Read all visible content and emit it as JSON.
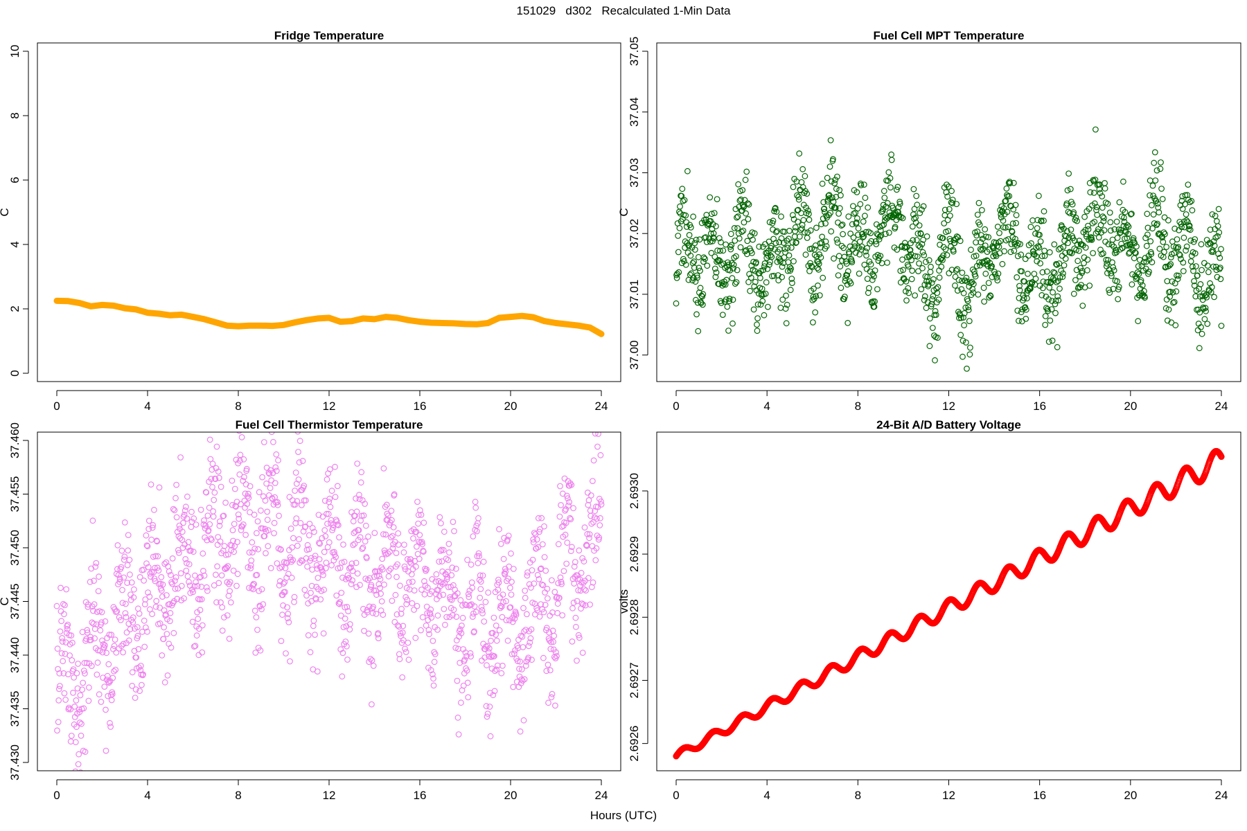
{
  "header": {
    "title": "151029   d302   Recalculated 1-Min Data",
    "xlabel": "Hours (UTC)"
  },
  "chart_data": [
    {
      "type": "line",
      "title": "Fridge Temperature",
      "xlabel": "",
      "ylabel": "C",
      "xlim": [
        0,
        24
      ],
      "ylim": [
        0,
        10
      ],
      "xticks": [
        0,
        4,
        8,
        12,
        16,
        20,
        24
      ],
      "yticks": [
        0,
        2,
        4,
        6,
        8,
        10
      ],
      "ytick_labels": [
        "0",
        "2",
        "4",
        "6",
        "8",
        "10"
      ],
      "color": "#FFA500",
      "x": [
        0,
        0.5,
        1,
        1.5,
        2,
        2.5,
        3,
        3.5,
        4,
        4.5,
        5,
        5.5,
        6,
        6.5,
        7,
        7.5,
        8,
        8.5,
        9,
        9.5,
        10,
        10.5,
        11,
        11.5,
        12,
        12.5,
        13,
        13.5,
        14,
        14.5,
        15,
        15.5,
        16,
        16.5,
        17,
        17.5,
        18,
        18.5,
        19,
        19.5,
        20,
        20.5,
        21,
        21.5,
        22,
        22.5,
        23,
        23.5,
        24
      ],
      "values": [
        2.25,
        2.24,
        2.18,
        2.08,
        2.12,
        2.1,
        2.02,
        1.98,
        1.88,
        1.85,
        1.8,
        1.82,
        1.75,
        1.68,
        1.58,
        1.48,
        1.46,
        1.48,
        1.48,
        1.47,
        1.5,
        1.58,
        1.65,
        1.7,
        1.72,
        1.6,
        1.62,
        1.7,
        1.68,
        1.75,
        1.72,
        1.65,
        1.6,
        1.57,
        1.56,
        1.55,
        1.53,
        1.52,
        1.56,
        1.72,
        1.75,
        1.78,
        1.74,
        1.62,
        1.56,
        1.52,
        1.48,
        1.42,
        1.22
      ]
    },
    {
      "type": "scatter",
      "title": "Fuel Cell MPT Temperature",
      "xlabel": "",
      "ylabel": "C",
      "xlim": [
        0,
        24
      ],
      "ylim": [
        36.997,
        37.05
      ],
      "xticks": [
        0,
        4,
        8,
        12,
        16,
        20,
        24
      ],
      "yticks": [
        37.0,
        37.01,
        37.02,
        37.03,
        37.04,
        37.05
      ],
      "ytick_labels": [
        "37.00",
        "37.01",
        "37.02",
        "37.03",
        "37.04",
        "37.05"
      ],
      "color": "#006400",
      "n_points": 1440,
      "baseline": [
        [
          0,
          37.016
        ],
        [
          1,
          37.018
        ],
        [
          2,
          37.015
        ],
        [
          3,
          37.02
        ],
        [
          4,
          37.012
        ],
        [
          5,
          37.02
        ],
        [
          6,
          37.018
        ],
        [
          7,
          37.022
        ],
        [
          8,
          37.017
        ],
        [
          9,
          37.02
        ],
        [
          10,
          37.022
        ],
        [
          11,
          37.012
        ],
        [
          12,
          37.018
        ],
        [
          13,
          37.01
        ],
        [
          14,
          37.02
        ],
        [
          15,
          37.018
        ],
        [
          16,
          37.012
        ],
        [
          17,
          37.016
        ],
        [
          18,
          37.022
        ],
        [
          19,
          37.02
        ],
        [
          20,
          37.016
        ],
        [
          21,
          37.02
        ],
        [
          22,
          37.018
        ],
        [
          23,
          37.016
        ],
        [
          24,
          37.01
        ]
      ],
      "spread": 0.009
    },
    {
      "type": "scatter",
      "title": "Fuel Cell Thermistor Temperature",
      "xlabel": "",
      "ylabel": "C",
      "xlim": [
        0,
        24
      ],
      "ylim": [
        37.43,
        37.46
      ],
      "xticks": [
        0,
        4,
        8,
        12,
        16,
        20,
        24
      ],
      "yticks": [
        37.43,
        37.435,
        37.44,
        37.445,
        37.45,
        37.455,
        37.46
      ],
      "ytick_labels": [
        "37.430",
        "37.435",
        "37.440",
        "37.445",
        "37.450",
        "37.455",
        "37.460"
      ],
      "color": "#EE82EE",
      "n_points": 1440,
      "baseline": [
        [
          0,
          37.437
        ],
        [
          1,
          37.439
        ],
        [
          2,
          37.441
        ],
        [
          3,
          37.444
        ],
        [
          4,
          37.446
        ],
        [
          5,
          37.448
        ],
        [
          6,
          37.449
        ],
        [
          7,
          37.451
        ],
        [
          8,
          37.452
        ],
        [
          9,
          37.451
        ],
        [
          10,
          37.451
        ],
        [
          11,
          37.45
        ],
        [
          12,
          37.449
        ],
        [
          13,
          37.448
        ],
        [
          14,
          37.448
        ],
        [
          15,
          37.447
        ],
        [
          16,
          37.446
        ],
        [
          17,
          37.445
        ],
        [
          18,
          37.444
        ],
        [
          19,
          37.443
        ],
        [
          20,
          37.443
        ],
        [
          21,
          37.444
        ],
        [
          22,
          37.446
        ],
        [
          23,
          37.449
        ],
        [
          24,
          37.451
        ]
      ],
      "spread": 0.0075
    },
    {
      "type": "line",
      "title": "24-Bit A/D Battery Voltage",
      "xlabel": "",
      "ylabel": "volts",
      "xlim": [
        0,
        24
      ],
      "ylim": [
        2.69257,
        2.69308
      ],
      "xticks": [
        0,
        4,
        8,
        12,
        16,
        20,
        24
      ],
      "yticks": [
        2.6926,
        2.6927,
        2.6928,
        2.6929,
        2.693
      ],
      "ytick_labels": [
        "2.6926",
        "2.6927",
        "2.6928",
        "2.6929",
        "2.6930"
      ],
      "color": "#FF0000",
      "x_start": 0,
      "x_end": 24,
      "y_start": 2.69258,
      "y_end": 2.69305,
      "oscillation_amplitude_start": 6e-06,
      "oscillation_amplitude_end": 1.8e-05,
      "oscillation_period_hours": 1.3
    }
  ]
}
